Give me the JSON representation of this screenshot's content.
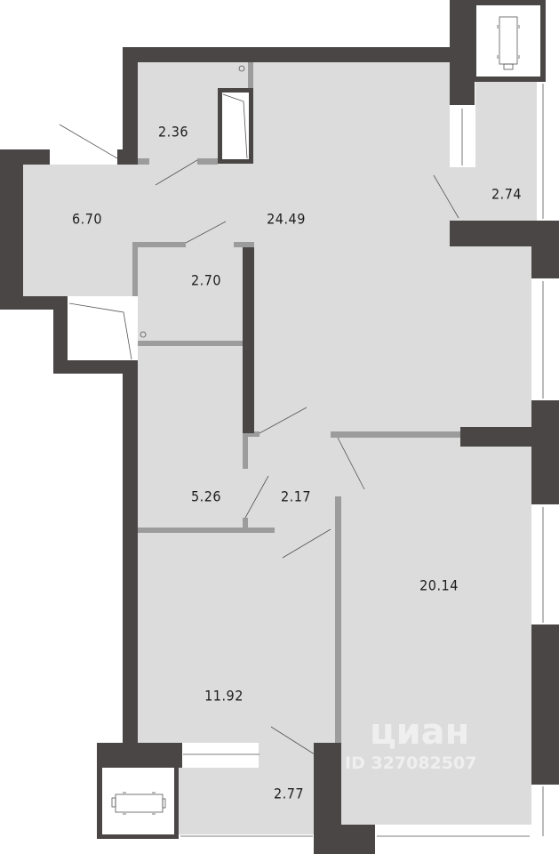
{
  "plan": {
    "colors": {
      "floor": "#dcdcdc",
      "outer_wall": "#4a4646",
      "inner_wall": "#9c9c9c",
      "label": "#1e1e1e"
    },
    "rooms": [
      {
        "id": "bathroom",
        "area": "2.36"
      },
      {
        "id": "hallway",
        "area": "6.70"
      },
      {
        "id": "kitchen-living",
        "area": "24.49"
      },
      {
        "id": "balcony-top",
        "area": "2.74"
      },
      {
        "id": "toilet",
        "area": "2.70"
      },
      {
        "id": "wardrobe",
        "area": "5.26"
      },
      {
        "id": "corridor",
        "area": "2.17"
      },
      {
        "id": "bedroom-large",
        "area": "20.14"
      },
      {
        "id": "bedroom-small",
        "area": "11.92"
      },
      {
        "id": "loggia-bottom",
        "area": "2.77"
      }
    ]
  },
  "watermark": {
    "brand": "циан",
    "id_text": "ID 327082507"
  }
}
